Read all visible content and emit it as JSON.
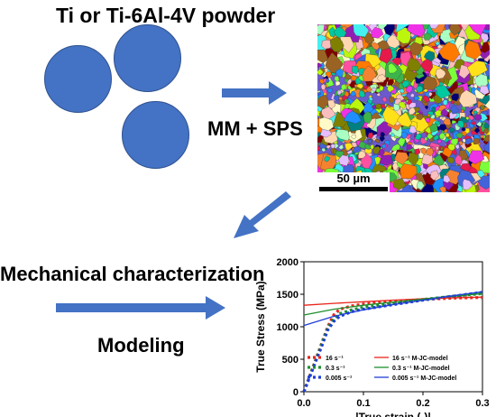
{
  "powder_title": "Ti or Ti-6Al-4V powder",
  "process_label": "MM + SPS",
  "scale_bar_label": "50 µm",
  "mech_label": "Mechanical characterization",
  "model_label": "Modeling",
  "colors": {
    "circle": "#4472c4",
    "arrow": "#4472c4"
  },
  "chart_data": {
    "type": "line",
    "xlabel": "|True strain (-)|",
    "ylabel": "True Stress (MPa)",
    "xlim": [
      0.0,
      0.3
    ],
    "ylim": [
      0,
      2000
    ],
    "x_ticks": [
      "0.0",
      "0.1",
      "0.2",
      "0.3"
    ],
    "y_ticks": [
      "0",
      "500",
      "1000",
      "1500",
      "2000"
    ],
    "legend_location": "lower-center",
    "series": [
      {
        "name": "16 s⁻¹",
        "style": "dotted",
        "color": "#e8251b",
        "points": [
          [
            0.0,
            0
          ],
          [
            0.01,
            250
          ],
          [
            0.02,
            500
          ],
          [
            0.03,
            750
          ],
          [
            0.04,
            1000
          ],
          [
            0.05,
            1180
          ],
          [
            0.06,
            1270
          ],
          [
            0.08,
            1320
          ],
          [
            0.1,
            1350
          ],
          [
            0.15,
            1390
          ],
          [
            0.2,
            1420
          ],
          [
            0.25,
            1440
          ],
          [
            0.3,
            1450
          ]
        ]
      },
      {
        "name": "0.3 s⁻¹",
        "style": "dotted",
        "color": "#1d8f2e",
        "points": [
          [
            0.0,
            0
          ],
          [
            0.01,
            240
          ],
          [
            0.02,
            490
          ],
          [
            0.03,
            730
          ],
          [
            0.04,
            980
          ],
          [
            0.05,
            1120
          ],
          [
            0.06,
            1200
          ],
          [
            0.08,
            1260
          ],
          [
            0.1,
            1300
          ],
          [
            0.15,
            1360
          ],
          [
            0.2,
            1420
          ],
          [
            0.25,
            1470
          ],
          [
            0.3,
            1510
          ]
        ]
      },
      {
        "name": "0.005 s⁻¹",
        "style": "dotted",
        "color": "#1f3fd6",
        "points": [
          [
            0.0,
            0
          ],
          [
            0.01,
            230
          ],
          [
            0.02,
            470
          ],
          [
            0.03,
            700
          ],
          [
            0.04,
            950
          ],
          [
            0.05,
            1080
          ],
          [
            0.06,
            1160
          ],
          [
            0.08,
            1230
          ],
          [
            0.1,
            1270
          ],
          [
            0.15,
            1340
          ],
          [
            0.2,
            1410
          ],
          [
            0.25,
            1470
          ],
          [
            0.3,
            1530
          ]
        ]
      },
      {
        "name": "16 s⁻¹ M-JC-model",
        "style": "solid",
        "color": "#e8251b",
        "points": [
          [
            0.0,
            1330
          ],
          [
            0.05,
            1360
          ],
          [
            0.1,
            1385
          ],
          [
            0.15,
            1410
          ],
          [
            0.2,
            1430
          ],
          [
            0.25,
            1445
          ],
          [
            0.3,
            1455
          ]
        ]
      },
      {
        "name": "0.3 s⁻¹ M-JC-model",
        "style": "solid",
        "color": "#1d8f2e",
        "points": [
          [
            0.0,
            1180
          ],
          [
            0.05,
            1270
          ],
          [
            0.1,
            1330
          ],
          [
            0.15,
            1380
          ],
          [
            0.2,
            1425
          ],
          [
            0.25,
            1470
          ],
          [
            0.3,
            1510
          ]
        ]
      },
      {
        "name": "0.005 s⁻¹ M-JC-model",
        "style": "solid",
        "color": "#1f3fd6",
        "points": [
          [
            0.0,
            1020
          ],
          [
            0.05,
            1160
          ],
          [
            0.1,
            1260
          ],
          [
            0.15,
            1340
          ],
          [
            0.2,
            1410
          ],
          [
            0.25,
            1475
          ],
          [
            0.3,
            1540
          ]
        ]
      }
    ]
  }
}
